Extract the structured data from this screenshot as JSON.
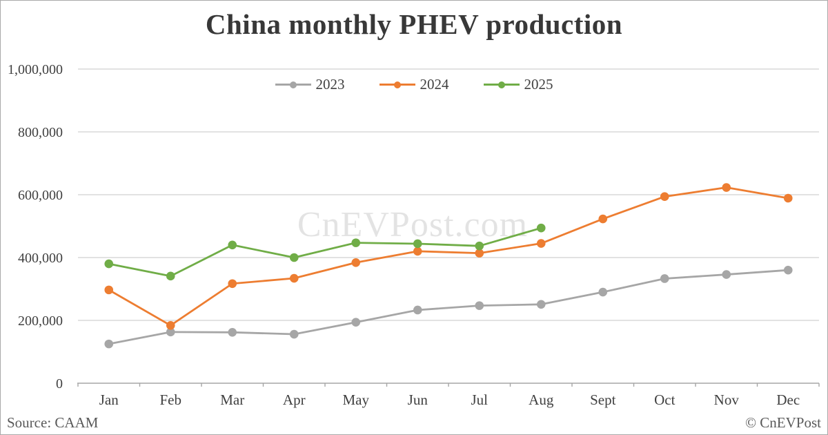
{
  "chart": {
    "title": "China monthly PHEV production",
    "watermark": "CnEVPost.com",
    "source": "Source: CAAM",
    "copyright": "© CnEVPost"
  },
  "chart_data": {
    "type": "line",
    "title": "China monthly PHEV production",
    "xlabel": "",
    "ylabel": "",
    "grid": "horizontal",
    "legend_position": "top-center",
    "categories": [
      "Jan",
      "Feb",
      "Mar",
      "Apr",
      "May",
      "Jun",
      "Jul",
      "Aug",
      "Sept",
      "Oct",
      "Nov",
      "Dec"
    ],
    "series": [
      {
        "name": "2023",
        "color": "#A6A6A6",
        "values": [
          125000,
          163000,
          162000,
          156000,
          194000,
          233000,
          247000,
          251000,
          290000,
          333000,
          346000,
          360000
        ]
      },
      {
        "name": "2024",
        "color": "#ED7D31",
        "values": [
          297000,
          184000,
          317000,
          334000,
          384000,
          420000,
          414000,
          445000,
          523000,
          594000,
          623000,
          589000
        ]
      },
      {
        "name": "2025",
        "color": "#70AD47",
        "values": [
          380000,
          341000,
          440000,
          400000,
          447000,
          444000,
          437000,
          494000,
          null,
          null,
          null,
          null
        ]
      }
    ],
    "ylim": [
      0,
      1000000
    ],
    "y_ticks": [
      {
        "value": 0,
        "label": "0"
      },
      {
        "value": 200000,
        "label": "200,000"
      },
      {
        "value": 400000,
        "label": "400,000"
      },
      {
        "value": 600000,
        "label": "600,000"
      },
      {
        "value": 800000,
        "label": "800,000"
      },
      {
        "value": 1000000,
        "label": "1,000,000"
      }
    ],
    "colors": {
      "gridline": "#d9d9d9",
      "axis": "#a6a6a6",
      "tick_label": "#404040",
      "watermark_opacity": "0.11"
    }
  }
}
